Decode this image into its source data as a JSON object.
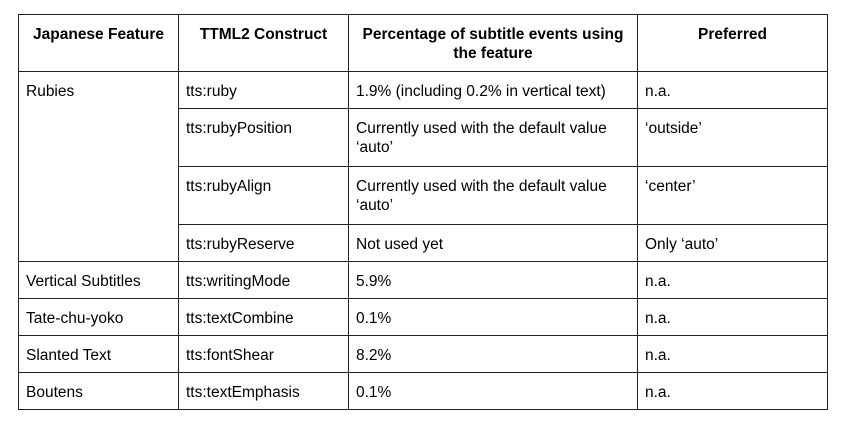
{
  "table": {
    "header": [
      "Japanese Feature",
      "TTML2 Construct",
      "Percentage of subtitle events using the feature",
      "Preferred"
    ],
    "rows": [
      [
        "Rubies",
        "tts:ruby",
        "1.9% (including 0.2% in vertical text)",
        "n.a."
      ],
      [
        "tts:rubyPosition",
        "Currently used with the default value ‘auto’",
        "‘outside’"
      ],
      [
        "tts:rubyAlign",
        "Currently used with the default value ‘auto’",
        "‘center’"
      ],
      [
        "tts:rubyReserve",
        "Not used yet",
        "Only ‘auto’"
      ],
      [
        "Vertical Subtitles",
        "tts:writingMode",
        "5.9%",
        "n.a."
      ],
      [
        "Tate-chu-yoko",
        "tts:textCombine",
        "0.1%",
        "n.a."
      ],
      [
        "Slanted Text",
        "tts:fontShear",
        "8.2%",
        "n.a."
      ],
      [
        "Boutens",
        "tts:textEmphasis",
        "0.1%",
        "n.a."
      ]
    ]
  }
}
